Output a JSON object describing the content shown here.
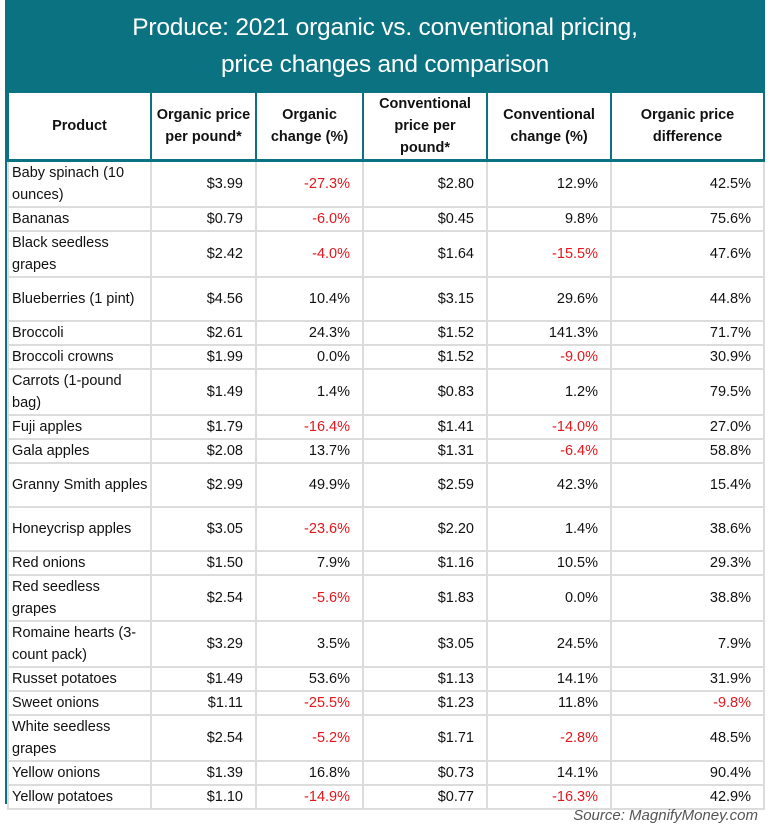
{
  "title_line1": "Produce: 2021 organic vs. conventional pricing,",
  "title_line2": "price changes and comparison",
  "colors": {
    "header": "#0b7282",
    "negative": "#e3171c"
  },
  "source": "Source: MagnifyMoney.com",
  "chart_data": {
    "type": "table",
    "columns": [
      "Product",
      "Organic price per pound*",
      "Organic change (%)",
      "Conventional price per pound*",
      "Conventional change (%)",
      "Organic price difference"
    ],
    "rows": [
      [
        "Baby spinach (10 ounces)",
        "$3.99",
        "-27.3%",
        "$2.80",
        "12.9%",
        "42.5%"
      ],
      [
        "Bananas",
        "$0.79",
        "-6.0%",
        "$0.45",
        "9.8%",
        "75.6%"
      ],
      [
        "Black seedless grapes",
        "$2.42",
        "-4.0%",
        "$1.64",
        "-15.5%",
        "47.6%"
      ],
      [
        "Blueberries (1 pint)",
        "$4.56",
        "10.4%",
        "$3.15",
        "29.6%",
        "44.8%"
      ],
      [
        "Broccoli",
        "$2.61",
        "24.3%",
        "$1.52",
        "141.3%",
        "71.7%"
      ],
      [
        "Broccoli crowns",
        "$1.99",
        "0.0%",
        "$1.52",
        "-9.0%",
        "30.9%"
      ],
      [
        "Carrots (1-pound bag)",
        "$1.49",
        "1.4%",
        "$0.83",
        "1.2%",
        "79.5%"
      ],
      [
        "Fuji apples",
        "$1.79",
        "-16.4%",
        "$1.41",
        "-14.0%",
        "27.0%"
      ],
      [
        "Gala apples",
        "$2.08",
        "13.7%",
        "$1.31",
        "-6.4%",
        "58.8%"
      ],
      [
        "Granny Smith apples",
        "$2.99",
        "49.9%",
        "$2.59",
        "42.3%",
        "15.4%"
      ],
      [
        "Honeycrisp apples",
        "$3.05",
        "-23.6%",
        "$2.20",
        "1.4%",
        "38.6%"
      ],
      [
        "Red onions",
        "$1.50",
        "7.9%",
        "$1.16",
        "10.5%",
        "29.3%"
      ],
      [
        "Red seedless grapes",
        "$2.54",
        "-5.6%",
        "$1.83",
        "0.0%",
        "38.8%"
      ],
      [
        "Romaine hearts (3-count pack)",
        "$3.29",
        "3.5%",
        "$3.05",
        "24.5%",
        "7.9%"
      ],
      [
        "Russet potatoes",
        "$1.49",
        "53.6%",
        "$1.13",
        "14.1%",
        "31.9%"
      ],
      [
        "Sweet onions",
        "$1.11",
        "-25.5%",
        "$1.23",
        "11.8%",
        "-9.8%"
      ],
      [
        "White seedless grapes",
        "$2.54",
        "-5.2%",
        "$1.71",
        "-2.8%",
        "48.5%"
      ],
      [
        "Yellow onions",
        "$1.39",
        "16.8%",
        "$0.73",
        "14.1%",
        "90.4%"
      ],
      [
        "Yellow potatoes",
        "$1.10",
        "-14.9%",
        "$0.77",
        "-16.3%",
        "42.9%"
      ]
    ]
  }
}
